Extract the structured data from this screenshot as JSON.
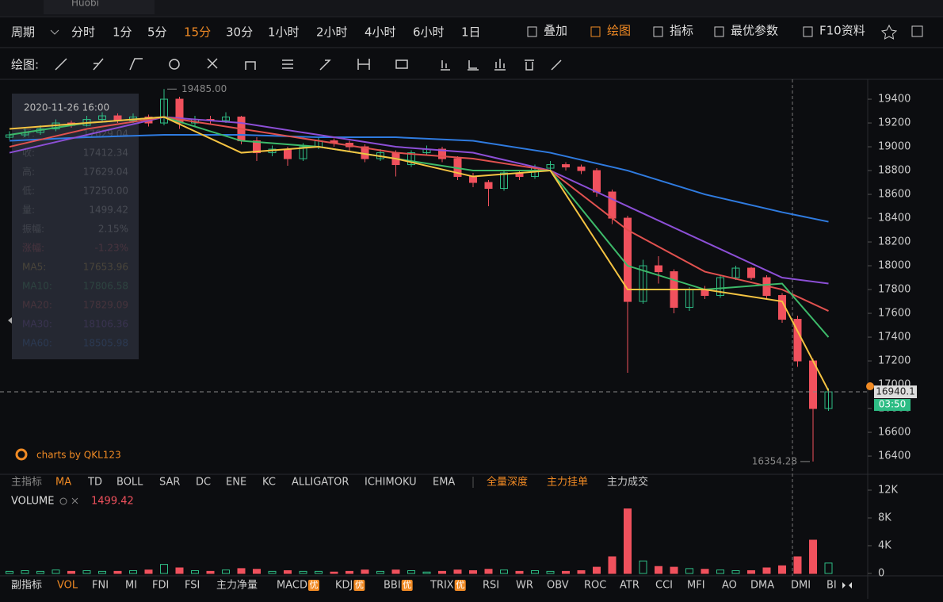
{
  "tab": "Huobi",
  "toolbar": {
    "period_label": "周期",
    "intervals": [
      "分时",
      "1分",
      "5分",
      "15分",
      "30分",
      "1小时",
      "2小时",
      "4小时",
      "6小时",
      "1日"
    ],
    "active_index": 3,
    "actions": [
      "叠加",
      "绘图",
      "指标",
      "最优参数",
      "F10资料"
    ]
  },
  "draw_label": "绘图:",
  "tooltip": {
    "time": "2020-11-26 16:00",
    "rows": [
      {
        "label": "开:",
        "value": "17629.04",
        "color": "#e6e6e6"
      },
      {
        "label": "收:",
        "value": "17412.34",
        "color": "#e6e6e6"
      },
      {
        "label": "高:",
        "value": "17629.04",
        "color": "#e6e6e6"
      },
      {
        "label": "低:",
        "value": "17250.00",
        "color": "#e6e6e6"
      },
      {
        "label": "量:",
        "value": "1499.42",
        "color": "#e6e6e6"
      },
      {
        "label": "振幅:",
        "value": "2.15%",
        "color": "#e6e6e6"
      },
      {
        "label": "涨幅:",
        "value": "-1.23%",
        "color": "#f0515d"
      },
      {
        "label": "MA5:",
        "value": "17653.96",
        "color": "#f5c342"
      },
      {
        "label": "MA10:",
        "value": "17806.58",
        "color": "#3dba6a"
      },
      {
        "label": "MA20:",
        "value": "17829.09",
        "color": "#e0514f"
      },
      {
        "label": "MA30:",
        "value": "18106.36",
        "color": "#8c4fd6"
      },
      {
        "label": "MA60:",
        "value": "18505.98",
        "color": "#2f7be0"
      }
    ]
  },
  "watermark": "charts by QKL123",
  "indicators_main": {
    "label": "主指标",
    "items": [
      "MA",
      "TD",
      "BOLL",
      "SAR",
      "DC",
      "ENE",
      "KC",
      "ALLIGATOR",
      "ICHIMOKU",
      "EMA"
    ],
    "extras": [
      "全量深度",
      "主力挂单",
      "主力成交"
    ]
  },
  "volume_header": {
    "label": "VOLUME",
    "value": "1499.42"
  },
  "indicators_sub": {
    "label": "副指标",
    "items": [
      "VOL",
      "FNI",
      "MI",
      "FDI",
      "FSI",
      "主力净量",
      "MACD",
      "KDJ",
      "BBI",
      "TRIX",
      "RSI",
      "WR",
      "OBV",
      "ROC",
      "ATR",
      "CCI",
      "MFI",
      "AO",
      "DMA",
      "DMI",
      "BI"
    ],
    "badges": [
      null,
      null,
      null,
      null,
      null,
      null,
      "优",
      "优",
      "优",
      "优",
      null,
      null,
      null,
      null,
      null,
      null,
      null,
      null,
      null,
      null,
      null
    ]
  },
  "chart_data": {
    "type": "candlestick",
    "up_color": "#2ebd85",
    "down_color": "#f0515d",
    "candles": [
      [
        19080,
        19130,
        19060,
        19100
      ],
      [
        19100,
        19150,
        19080,
        19120
      ],
      [
        19120,
        19180,
        19100,
        19150
      ],
      [
        19150,
        19230,
        19130,
        19200
      ],
      [
        19200,
        19220,
        19160,
        19180
      ],
      [
        19180,
        19260,
        19170,
        19230
      ],
      [
        19230,
        19290,
        19210,
        19260
      ],
      [
        19260,
        19280,
        19200,
        19220
      ],
      [
        19220,
        19280,
        19200,
        19250
      ],
      [
        19250,
        19270,
        19170,
        19200
      ],
      [
        19200,
        19485,
        19180,
        19400
      ],
      [
        19400,
        19420,
        19150,
        19200
      ],
      [
        19200,
        19260,
        19170,
        19230
      ],
      [
        19230,
        19260,
        19190,
        19220
      ],
      [
        19220,
        19290,
        19200,
        19250
      ],
      [
        19250,
        19260,
        19020,
        19050
      ],
      [
        19050,
        19080,
        18880,
        18950
      ],
      [
        18950,
        19010,
        18920,
        18980
      ],
      [
        18980,
        19000,
        18840,
        18900
      ],
      [
        18900,
        19030,
        18880,
        19000
      ],
      [
        19000,
        19080,
        18980,
        19050
      ],
      [
        19050,
        19070,
        19000,
        19030
      ],
      [
        19030,
        19050,
        18960,
        19000
      ],
      [
        19000,
        19020,
        18870,
        18900
      ],
      [
        18900,
        18980,
        18880,
        18950
      ],
      [
        18950,
        18970,
        18750,
        18850
      ],
      [
        18850,
        18970,
        18830,
        18950
      ],
      [
        18950,
        19010,
        18930,
        18980
      ],
      [
        18980,
        19000,
        18870,
        18900
      ],
      [
        18900,
        18920,
        18720,
        18750
      ],
      [
        18750,
        18780,
        18660,
        18700
      ],
      [
        18700,
        18720,
        18500,
        18650
      ],
      [
        18650,
        18800,
        18630,
        18780
      ],
      [
        18780,
        18800,
        18720,
        18750
      ],
      [
        18750,
        18850,
        18730,
        18820
      ],
      [
        18820,
        18880,
        18800,
        18850
      ],
      [
        18850,
        18870,
        18800,
        18830
      ],
      [
        18830,
        18850,
        18770,
        18800
      ],
      [
        18800,
        18820,
        18580,
        18620
      ],
      [
        18620,
        18640,
        18350,
        18400
      ],
      [
        18400,
        18420,
        17100,
        17700
      ],
      [
        17700,
        18050,
        17680,
        18000
      ],
      [
        18000,
        18080,
        17850,
        17950
      ],
      [
        17950,
        17970,
        17600,
        17650
      ],
      [
        17650,
        17820,
        17620,
        17800
      ],
      [
        17800,
        17830,
        17720,
        17750
      ],
      [
        17750,
        17920,
        17730,
        17900
      ],
      [
        17900,
        18000,
        17880,
        17980
      ],
      [
        17980,
        17990,
        17880,
        17900
      ],
      [
        17900,
        17920,
        17720,
        17750
      ],
      [
        17750,
        17770,
        17520,
        17550
      ],
      [
        17550,
        17580,
        17150,
        17200
      ],
      [
        17200,
        17220,
        16354.28,
        16800
      ],
      [
        16800,
        16970,
        16780,
        16940.1
      ]
    ],
    "volumes": [
      0.3,
      0.4,
      0.3,
      0.5,
      0.3,
      0.4,
      0.3,
      0.3,
      0.4,
      0.5,
      1.3,
      0.8,
      0.4,
      0.3,
      0.5,
      0.7,
      0.6,
      0.3,
      0.4,
      0.3,
      0.3,
      0.2,
      0.3,
      0.5,
      0.3,
      0.5,
      0.4,
      0.2,
      0.3,
      0.5,
      0.4,
      0.6,
      0.5,
      0.3,
      0.4,
      0.3,
      0.3,
      0.4,
      0.9,
      2.4,
      9.3,
      1.8,
      1.0,
      0.9,
      0.7,
      0.6,
      0.5,
      0.4,
      0.4,
      0.8,
      1.1,
      2.4,
      4.8,
      1.5
    ],
    "ma_x": [
      0,
      5,
      10,
      15,
      20,
      25,
      30,
      35,
      40,
      45,
      50,
      53
    ],
    "series": [
      {
        "name": "MA60",
        "color": "#2f7be0",
        "values": [
          19050,
          19080,
          19100,
          19100,
          19080,
          19080,
          19050,
          18950,
          18800,
          18600,
          18450,
          18370
        ]
      },
      {
        "name": "MA30",
        "color": "#8c4fd6",
        "values": [
          18950,
          19100,
          19250,
          19200,
          19100,
          19000,
          18950,
          18800,
          18500,
          18200,
          17900,
          17850
        ]
      },
      {
        "name": "MA20",
        "color": "#e0514f",
        "values": [
          19000,
          19150,
          19250,
          19150,
          19050,
          18950,
          18900,
          18800,
          18300,
          17950,
          17800,
          17620
        ]
      },
      {
        "name": "MA10",
        "color": "#3dba6a",
        "values": [
          19100,
          19200,
          19250,
          19050,
          19000,
          18900,
          18800,
          18800,
          18000,
          17800,
          17850,
          17400
        ]
      },
      {
        "name": "MA5",
        "color": "#f5c342",
        "values": [
          19150,
          19200,
          19250,
          18950,
          19000,
          18900,
          18750,
          18800,
          17800,
          17800,
          17700,
          16950
        ]
      }
    ],
    "ylim": [
      16247,
      19567
    ],
    "yticks": [
      16400,
      16600,
      16800,
      17000,
      17200,
      17400,
      17600,
      17800,
      18000,
      18200,
      18400,
      18600,
      18800,
      19000,
      19200,
      19400
    ],
    "vol_ylim": [
      0,
      12
    ],
    "vol_yticks": [
      {
        "value": 0,
        "label": "0"
      },
      {
        "value": 4,
        "label": "4K"
      },
      {
        "value": 8,
        "label": "8K"
      },
      {
        "value": 12,
        "label": "12K"
      }
    ],
    "high_marker": {
      "index": 10,
      "value": 19485,
      "label": "19485.00"
    },
    "low_marker": {
      "index": 52,
      "value": 16354.28,
      "label": "16354.28"
    },
    "last_price": {
      "value": 16940.1,
      "label": "16940.1",
      "countdown": "03:50"
    }
  }
}
